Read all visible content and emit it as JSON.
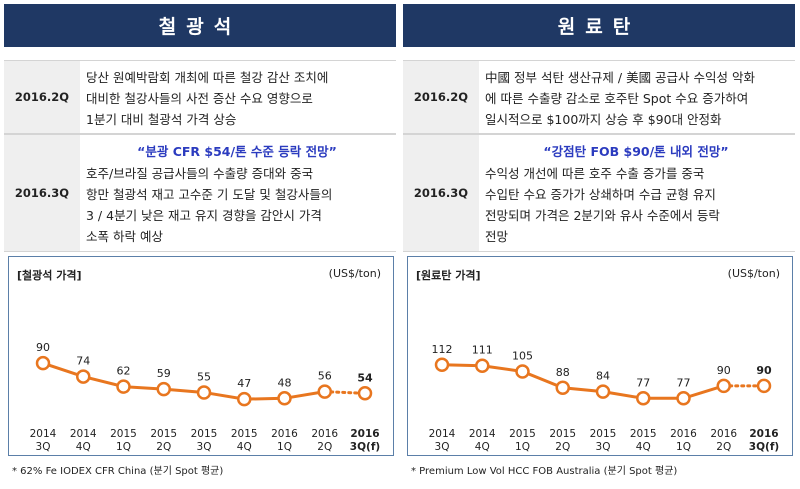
{
  "left": {
    "header": "철광석",
    "rows": [
      {
        "period": "2016.2Q",
        "lines": [
          "당산 원예박람회 개최에 따른 철강 감산 조치에",
          "대비한 철강사들의 사전 증산 수요 영향으로",
          "1분기 대비 철광석 가격 상승"
        ]
      },
      {
        "period": "2016.3Q",
        "forecast": "“분광 CFR $54/톤 수준 등락 전망”",
        "lines": [
          "호주/브라질 공급사들의 수출량 증대와 중국",
          "항만 철광석 재고 고수준 기 도달 및 철강사들의",
          "3 / 4분기 낮은 재고 유지 경향을 감안시 가격",
          "소폭 하락 예상"
        ]
      }
    ],
    "chart_title": "[철광석 가격]",
    "unit": "(US$/ton)",
    "footnote": "* 62% Fe IODEX CFR China (분기 Spot 평균)"
  },
  "right": {
    "header": "원료탄",
    "rows": [
      {
        "period": "2016.2Q",
        "lines": [
          "中國 정부 석탄 생산규제 / 美國 공급사 수익성 악화",
          "에 따른 수출량 감소로 호주탄 Spot 수요 증가하여",
          "일시적으로 $100까지 상승 후 $90대 안정화"
        ]
      },
      {
        "period": "2016.3Q",
        "forecast": "“강점탄 FOB $90/톤 내외 전망”",
        "lines": [
          "수익성 개선에 따른 호주 수출 증가를 중국",
          "수입탄 수요 증가가 상쇄하며 수급 균형 유지",
          "전망되며 가격은 2분기와 유사 수준에서 등락",
          "전망"
        ]
      }
    ],
    "chart_title": "[원료탄 가격]",
    "unit": "(US$/ton)",
    "footnote": "* Premium Low Vol HCC FOB Australia (분기 Spot 평균)"
  },
  "chart_data": [
    {
      "type": "line",
      "title": "[철광석 가격]",
      "ylabel": "(US$/ton)",
      "categories": [
        [
          "2014",
          "3Q"
        ],
        [
          "2014",
          "4Q"
        ],
        [
          "2015",
          "1Q"
        ],
        [
          "2015",
          "2Q"
        ],
        [
          "2015",
          "3Q"
        ],
        [
          "2015",
          "4Q"
        ],
        [
          "2016",
          "1Q"
        ],
        [
          "2016",
          "2Q"
        ],
        [
          "2016",
          "3Q(f)"
        ]
      ],
      "values": [
        90,
        74,
        62,
        59,
        55,
        47,
        48,
        56,
        54
      ],
      "forecast_index": 8,
      "ylim": [
        40,
        95
      ],
      "grid": false,
      "color": "#e8761f"
    },
    {
      "type": "line",
      "title": "[원료탄 가격]",
      "ylabel": "(US$/ton)",
      "categories": [
        [
          "2014",
          "3Q"
        ],
        [
          "2014",
          "4Q"
        ],
        [
          "2015",
          "1Q"
        ],
        [
          "2015",
          "2Q"
        ],
        [
          "2015",
          "3Q"
        ],
        [
          "2015",
          "4Q"
        ],
        [
          "2016",
          "1Q"
        ],
        [
          "2016",
          "2Q"
        ],
        [
          "2016",
          "3Q(f)"
        ]
      ],
      "values": [
        112,
        111,
        105,
        88,
        84,
        77,
        77,
        90,
        90
      ],
      "forecast_index": 8,
      "ylim": [
        70,
        118
      ],
      "grid": false,
      "color": "#e8761f"
    }
  ],
  "colors": {
    "header_bg": "#1f3864",
    "forecast_text": "#2b3bbf",
    "line": "#e8761f",
    "chart_border": "#5b7fa8"
  }
}
